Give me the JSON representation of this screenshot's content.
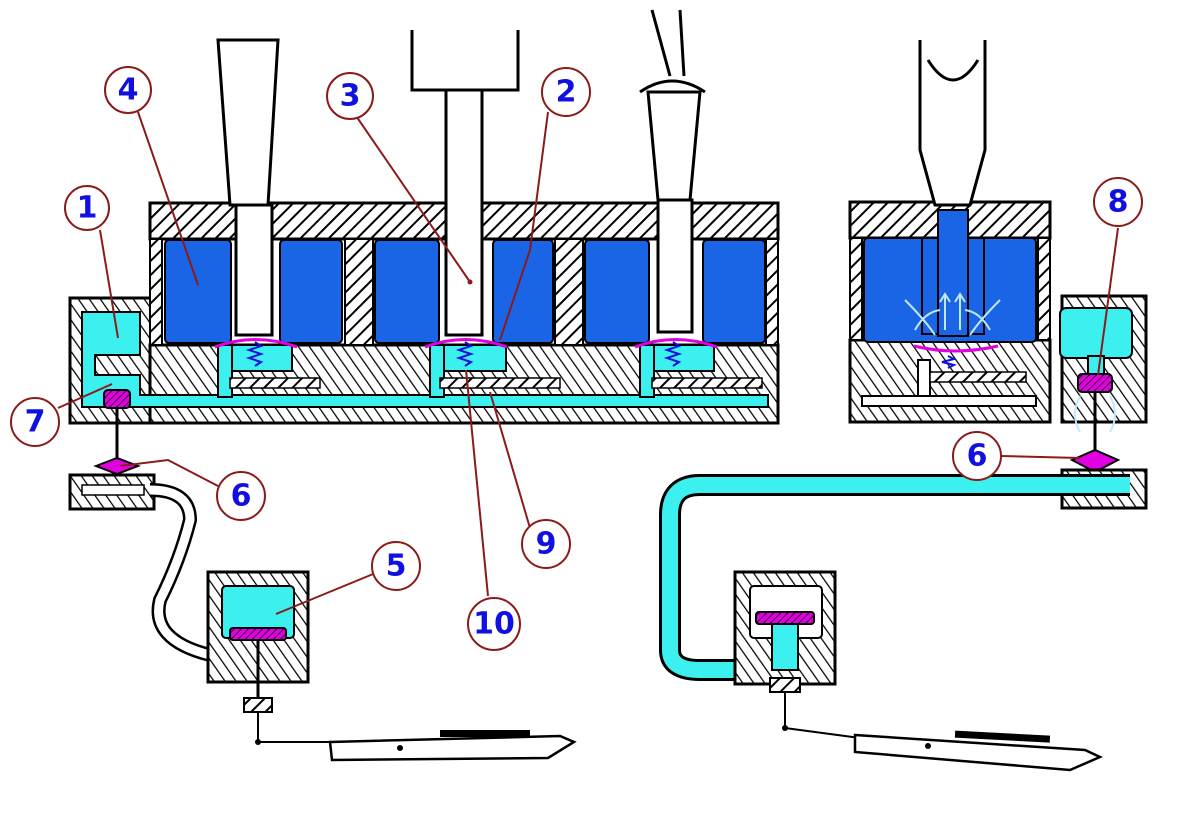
{
  "colors": {
    "fluid": "#3cf0f0",
    "chamber": "#1a64e6",
    "seal": "#e000e0",
    "hatch": "#000000",
    "label_text": "#1010e0",
    "label_ring": "#8b1a1a",
    "flow_arrow": "#bfe8ff"
  },
  "labels": [
    {
      "id": "1",
      "text": "1"
    },
    {
      "id": "2",
      "text": "2"
    },
    {
      "id": "3",
      "text": "3"
    },
    {
      "id": "4",
      "text": "4"
    },
    {
      "id": "5",
      "text": "5"
    },
    {
      "id": "6a",
      "text": "6"
    },
    {
      "id": "6b",
      "text": "6"
    },
    {
      "id": "7",
      "text": "7"
    },
    {
      "id": "8",
      "text": "8"
    },
    {
      "id": "9",
      "text": "9"
    },
    {
      "id": "10",
      "text": "10"
    }
  ],
  "icons": {
    "plunger": "pedal-plunger-icon",
    "spring": "spring-icon",
    "valve": "valve-seal-icon",
    "flow": "flow-arrows-icon"
  }
}
